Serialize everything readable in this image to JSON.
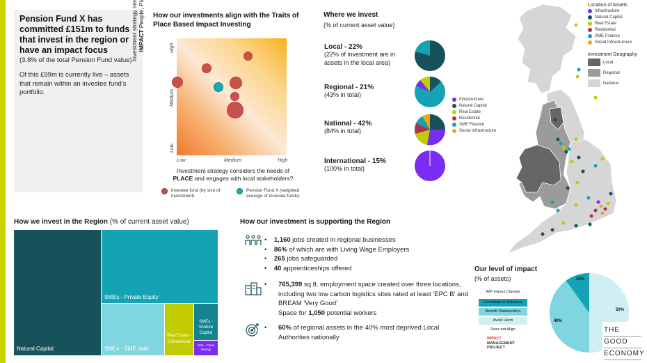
{
  "colors": {
    "accent": "#c8d400",
    "teal_dark": "#17525a",
    "teal": "#14a3b5",
    "teal_light": "#7fd5e0",
    "lime": "#c3cc00",
    "purple": "#7a2cf0",
    "red_fund": "#c8514c",
    "map_local": "#666666",
    "map_regional": "#9b9b9b",
    "map_national": "#d6d6d6"
  },
  "info": {
    "headline": "Pension Fund X has committed £151m to funds that invest in the region or have an impact focus",
    "sub": "(3.8% of the total Pension Fund value)",
    "para": "Of this £99m is currently live – assets that remain within an investee fund's portfolio."
  },
  "traits": {
    "title": "How our investments align with the Traits of Place Based Impact Investing",
    "y_title_1": "Investment strategy intends to positively ",
    "y_title_bold": "IMPACT",
    "y_title_2": " People, Place or Planet",
    "x_title_1": "Investment strategy considers the needs of ",
    "x_title_bold": "PLACE",
    "x_title_2": " and engages with local stakeholders?",
    "y_ticks": [
      "High",
      "Medium",
      "Low"
    ],
    "x_ticks": [
      "Low",
      "Medium",
      "High"
    ],
    "legend": [
      {
        "label": "Investee fund (by size of investment)",
        "color": "#c8514c"
      },
      {
        "label": "Pension Fund X (weighted average of investee funds)",
        "color": "#17a9b8"
      }
    ]
  },
  "where": {
    "title": "Where we invest",
    "subtitle": "(% of current asset value)",
    "rows": [
      {
        "label": "Local - 22%",
        "desc": "(22% of investment are in assets in the local area)"
      },
      {
        "label": "Regional - 21%",
        "desc": "(43% in total)"
      },
      {
        "label": "National - 42%",
        "desc": "(84% in total)"
      },
      {
        "label": "International - 15%",
        "desc": "(100% in total)"
      }
    ],
    "pie_legend": [
      {
        "label": "Infrastructure",
        "color": "#7a2cf0"
      },
      {
        "label": "Natural Capital",
        "color": "#17525a"
      },
      {
        "label": "Real Estate",
        "color": "#c3cc00"
      },
      {
        "label": "Residential",
        "color": "#b0324f"
      },
      {
        "label": "SME Finance",
        "color": "#14a3b5"
      },
      {
        "label": "Social Infrastructure",
        "color": "#f0a41c"
      }
    ]
  },
  "map": {
    "assets_title": "Location of Assets",
    "assets": [
      {
        "label": "Infrastructure",
        "color": "#7a2cf0"
      },
      {
        "label": "Natural Capital",
        "color": "#17525a"
      },
      {
        "label": "Real Estate",
        "color": "#c3cc00"
      },
      {
        "label": "Residential",
        "color": "#b0324f"
      },
      {
        "label": "SME Finance",
        "color": "#14a3b5"
      },
      {
        "label": "Social Infrastructure",
        "color": "#f0a41c"
      }
    ],
    "geo_title": "Investment Geography",
    "geo": [
      {
        "label": "Local",
        "color": "#666666"
      },
      {
        "label": "Regional",
        "color": "#9b9b9b"
      },
      {
        "label": "National",
        "color": "#d6d6d6"
      }
    ]
  },
  "region": {
    "title_bold": "How we invest in the Region",
    "title_rest": " (% of current asset value)",
    "tiles": {
      "natural_capital": "Natural Capital",
      "private_equity": "SMEs - Private Equity",
      "sme_debt": "SMEs - SME debt",
      "real_estate": "Real Estate - Commercial",
      "venture": "SMEs - Venture Capital",
      "infra": "Infra - Clean Energy"
    }
  },
  "support": {
    "title": "How our investment is supporting the Region",
    "jobs": [
      {
        "bold": "1,160",
        "text": " jobs created in regional businesses"
      },
      {
        "bold": "86%",
        "text": " of which are with Living Wage Employers"
      },
      {
        "bold": "265",
        "text": " jobs safeguarded"
      },
      {
        "bold": "40",
        "text": " apprenticeships offered"
      }
    ],
    "space_bold": "765,399",
    "space_text_1": " sq.ft. employment space created over three locations, including two low carbon logistics sites rated at least 'EPC B' and BREAM 'Very Good'",
    "space_text_2": "Space for ",
    "space_bold_2": "1,050",
    "space_text_3": " potential workers",
    "deprived_bold": "60%",
    "deprived_text": " of regional assets in the 40% most deprived Local Authorities nationally"
  },
  "impact": {
    "title": "Our level of impact",
    "subtitle": "(% of assets)",
    "classes_title": "IMP Impact Classes",
    "classes": [
      "Contribute to Solutions",
      "Benefit Stakeholders",
      "Avoid Harm",
      "Does not Align"
    ],
    "imp_logo": [
      "IMPACT",
      "MANAGEMENT",
      "PROJECT"
    ],
    "pie_labels": [
      "10%",
      "50%",
      "40%"
    ],
    "brand": [
      "THE",
      "GOOD",
      "ECONOMY"
    ]
  }
}
